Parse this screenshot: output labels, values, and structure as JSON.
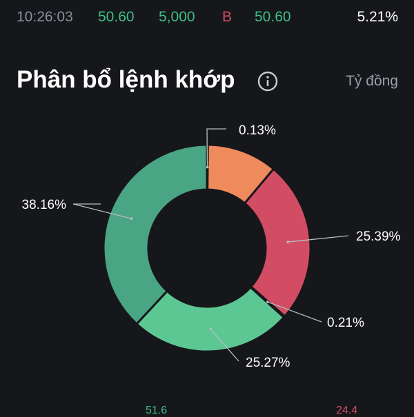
{
  "trade": {
    "time": "10:26:03",
    "price": "50.60",
    "volume": "5,000",
    "side": "B",
    "match_price": "50.60",
    "change_pct": "5.21%"
  },
  "header": {
    "title": "Phân bổ lệnh khớp",
    "unit": "Tỷ đồng"
  },
  "colors": {
    "buy": "#3dbf86",
    "sell": "#d24d63",
    "muted": "#8a8f99"
  },
  "chart_data": {
    "type": "pie",
    "donut": true,
    "start": "top, clockwise",
    "slices": [
      {
        "label": "0.13%",
        "value": 0.13,
        "color": "#ffffff"
      },
      {
        "label": "",
        "value": 11.0,
        "color": "#ef8a5d"
      },
      {
        "label": "25.39%",
        "value": 25.39,
        "color": "#d24d63"
      },
      {
        "label": "0.21%",
        "value": 0.21,
        "color": "#ffffff"
      },
      {
        "label": "25.27%",
        "value": 25.27,
        "color": "#5cc793"
      },
      {
        "label": "38.16%",
        "value": 38.16,
        "color": "#4aa584"
      }
    ]
  },
  "bottom": {
    "left_value": "51.6",
    "right_value": "24.4"
  }
}
